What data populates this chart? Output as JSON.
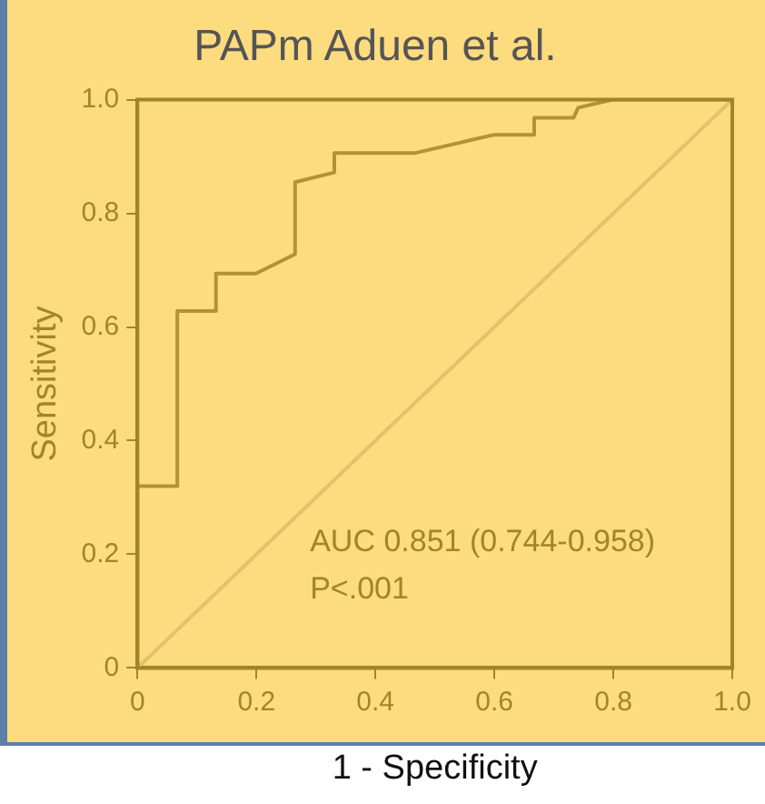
{
  "chart_data": {
    "type": "line",
    "title": "PAPm Aduen et al.",
    "xlabel": "1 - Specificity",
    "ylabel": "Sensitivity",
    "xlim": [
      0,
      1
    ],
    "ylim": [
      0,
      1
    ],
    "xticks": [
      0,
      {
        "value": 0.2,
        "label": "0.2"
      },
      {
        "value": 0.4,
        "label": "0.4"
      },
      {
        "value": 0.6,
        "label": "0.6"
      },
      {
        "value": 0.8,
        "label": "0.8"
      },
      {
        "value": 1,
        "label": "1.0"
      }
    ],
    "yticks": [
      0,
      {
        "value": 0.2,
        "label": "0.2"
      },
      {
        "value": 0.4,
        "label": "0.4"
      },
      {
        "value": 0.6,
        "label": "0.6"
      },
      {
        "value": 0.8,
        "label": "0.8"
      },
      {
        "value": 1,
        "label": "1.0"
      }
    ],
    "grid": false,
    "legend": false,
    "marker": "none",
    "line_style": "solid",
    "annotations": [
      "AUC 0.851 (0.744-0.958)",
      "P<.001"
    ],
    "series": [
      {
        "color": "#b39330",
        "x": [
          0,
          0,
          0.067,
          0.067,
          0.132,
          0.132,
          0.199,
          0.265,
          0.265,
          0.331,
          0.331,
          0.466,
          0.598,
          0.667,
          0.667,
          0.733,
          0.741,
          0.799,
          1
        ],
        "values": [
          0,
          0.32,
          0.32,
          0.628,
          0.628,
          0.694,
          0.694,
          0.728,
          0.855,
          0.872,
          0.906,
          0.906,
          0.938,
          0.938,
          0.968,
          0.968,
          0.986,
          1,
          1
        ]
      },
      {
        "color": "#e2c26a",
        "x": [
          0,
          1
        ],
        "values": [
          0,
          1
        ]
      }
    ]
  }
}
